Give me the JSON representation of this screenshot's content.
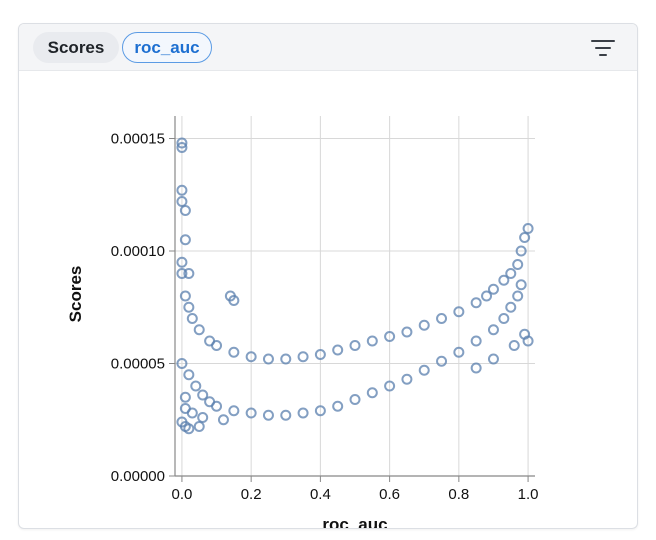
{
  "header": {
    "scores_chip": "Scores",
    "metric_chip": "roc_auc",
    "filter_icon": "filter-icon"
  },
  "colors": {
    "point_stroke": "#5a7fae",
    "grid": "#d8d8d8",
    "axis": "#888888",
    "chip_accent": "#1d6fd1"
  },
  "chart_data": {
    "type": "scatter",
    "title": "",
    "xlabel": "roc_auc",
    "ylabel": "Scores",
    "xlim": [
      -0.02,
      1.02
    ],
    "ylim": [
      0,
      0.00016
    ],
    "x_ticks": [
      0.0,
      0.2,
      0.4,
      0.6,
      0.8,
      1.0
    ],
    "x_tick_labels": [
      "0.0",
      "0.2",
      "0.4",
      "0.6",
      "0.8",
      "1.0"
    ],
    "y_ticks": [
      0,
      5e-05,
      0.0001,
      0.00015
    ],
    "y_tick_labels": [
      "0.00000",
      "0.00005",
      "0.00010",
      "0.00015"
    ],
    "grid": true,
    "marker": "open-circle",
    "series": [
      {
        "points": [
          [
            0.0,
            9e-05
          ],
          [
            0.01,
            8e-05
          ],
          [
            0.02,
            7.5e-05
          ],
          [
            0.03,
            7e-05
          ],
          [
            0.05,
            6.5e-05
          ],
          [
            0.08,
            6e-05
          ],
          [
            0.1,
            5.8e-05
          ],
          [
            0.15,
            5.5e-05
          ],
          [
            0.2,
            5.3e-05
          ],
          [
            0.25,
            5.2e-05
          ],
          [
            0.3,
            5.2e-05
          ],
          [
            0.35,
            5.3e-05
          ],
          [
            0.4,
            5.4e-05
          ],
          [
            0.45,
            5.6e-05
          ],
          [
            0.5,
            5.8e-05
          ],
          [
            0.55,
            6e-05
          ],
          [
            0.6,
            6.2e-05
          ],
          [
            0.65,
            6.4e-05
          ],
          [
            0.7,
            6.7e-05
          ],
          [
            0.75,
            7e-05
          ],
          [
            0.8,
            7.3e-05
          ],
          [
            0.85,
            7.7e-05
          ],
          [
            0.88,
            8e-05
          ],
          [
            0.9,
            8.3e-05
          ],
          [
            0.93,
            8.7e-05
          ],
          [
            0.95,
            9e-05
          ],
          [
            0.97,
            9.4e-05
          ],
          [
            0.98,
            0.0001
          ],
          [
            0.99,
            0.000106
          ],
          [
            1.0,
            0.00011
          ],
          [
            0.0,
            0.000148
          ],
          [
            0.0,
            0.000146
          ],
          [
            0.0,
            0.000127
          ],
          [
            0.0,
            0.000122
          ],
          [
            0.01,
            0.000118
          ],
          [
            0.01,
            0.000105
          ],
          [
            0.0,
            9.5e-05
          ],
          [
            0.02,
            9e-05
          ],
          [
            0.14,
            8e-05
          ],
          [
            0.15,
            7.8e-05
          ],
          [
            0.0,
            5e-05
          ],
          [
            0.02,
            4.5e-05
          ],
          [
            0.04,
            4e-05
          ],
          [
            0.06,
            3.6e-05
          ],
          [
            0.08,
            3.3e-05
          ],
          [
            0.1,
            3.1e-05
          ],
          [
            0.15,
            2.9e-05
          ],
          [
            0.2,
            2.8e-05
          ],
          [
            0.25,
            2.7e-05
          ],
          [
            0.3,
            2.7e-05
          ],
          [
            0.35,
            2.8e-05
          ],
          [
            0.4,
            2.9e-05
          ],
          [
            0.45,
            3.1e-05
          ],
          [
            0.5,
            3.4e-05
          ],
          [
            0.55,
            3.7e-05
          ],
          [
            0.6,
            4e-05
          ],
          [
            0.65,
            4.3e-05
          ],
          [
            0.7,
            4.7e-05
          ],
          [
            0.75,
            5.1e-05
          ],
          [
            0.8,
            5.5e-05
          ],
          [
            0.85,
            6e-05
          ],
          [
            0.9,
            6.5e-05
          ],
          [
            0.93,
            7e-05
          ],
          [
            0.95,
            7.5e-05
          ],
          [
            0.97,
            8e-05
          ],
          [
            0.98,
            8.5e-05
          ],
          [
            1.0,
            6e-05
          ],
          [
            0.99,
            6.3e-05
          ],
          [
            0.96,
            5.8e-05
          ],
          [
            0.9,
            5.2e-05
          ],
          [
            0.85,
            4.8e-05
          ],
          [
            0.0,
            2.4e-05
          ],
          [
            0.01,
            2.2e-05
          ],
          [
            0.02,
            2.1e-05
          ],
          [
            0.05,
            2.2e-05
          ],
          [
            0.01,
            3e-05
          ],
          [
            0.01,
            3.5e-05
          ],
          [
            0.03,
            2.8e-05
          ],
          [
            0.06,
            2.6e-05
          ],
          [
            0.12,
            2.5e-05
          ]
        ]
      }
    ]
  }
}
